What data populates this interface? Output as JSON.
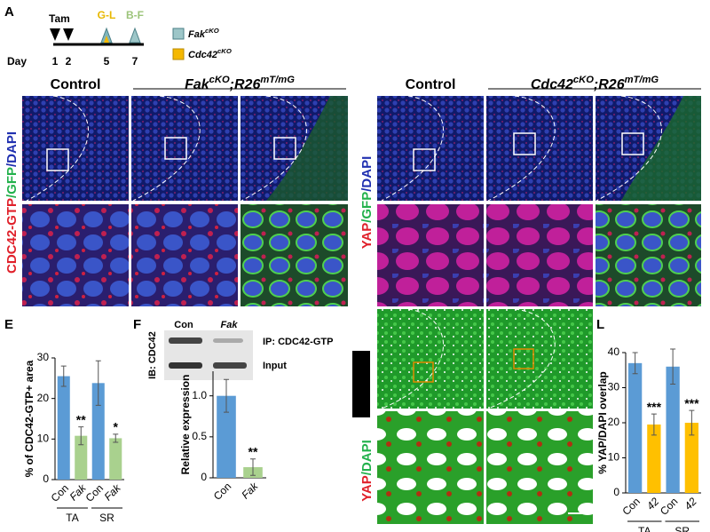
{
  "panel_labels": {
    "a": "A",
    "e": "E",
    "f": "F",
    "l": "L"
  },
  "timeline": {
    "drug": "Tam",
    "day_label": "Day",
    "days": [
      "1",
      "2",
      "5",
      "7"
    ],
    "markers": [
      "G-L",
      "B-F"
    ],
    "legend": [
      [
        "Fak",
        "cKO"
      ],
      [
        "Cdc42",
        "cKO"
      ]
    ]
  },
  "fak_images": {
    "control": "Control",
    "mutant": [
      "Fak",
      "cKO",
      ";R26",
      "mT/mG"
    ],
    "stain": [
      "CDC42-GTP",
      "/GFP",
      "/DAPI"
    ]
  },
  "cdc42_images": {
    "control": "Control",
    "mutant": [
      "Cdc42",
      "cKO",
      ";R26",
      "mT/mG"
    ],
    "stain": [
      "YAP",
      "/GFP",
      "/DAPI"
    ],
    "stain2": [
      "YAP",
      "/DAPI"
    ]
  },
  "blot": {
    "lanes": [
      "Con",
      "Fak"
    ],
    "antibody": "IB: CDC42",
    "rows": [
      "IP: CDC42-GTP",
      "Input"
    ]
  },
  "chart_data": [
    {
      "type": "bar",
      "ylabel": "% of CDC42-GTP+ area",
      "categories": [
        "Con",
        "Fak",
        "Con",
        "Fak"
      ],
      "groups": [
        "TA",
        "SR"
      ],
      "values": [
        25.5,
        10.8,
        23.8,
        10.2
      ],
      "errors": [
        2.5,
        2.2,
        5.5,
        1.0
      ],
      "colors": [
        "#5b9bd5",
        "#a9d18e",
        "#5b9bd5",
        "#a9d18e"
      ],
      "annotations": [
        null,
        "**",
        null,
        "*"
      ],
      "ylim": [
        0,
        30
      ],
      "yticks": [
        0,
        10,
        20,
        30
      ]
    },
    {
      "type": "bar",
      "ylabel": "Relative expression",
      "categories": [
        "Con",
        "Fak"
      ],
      "values": [
        1.0,
        0.13
      ],
      "errors": [
        0.2,
        0.1
      ],
      "colors": [
        "#5b9bd5",
        "#a9d18e"
      ],
      "annotations": [
        null,
        "**"
      ],
      "ylim": [
        0,
        1.3
      ],
      "yticks": [
        0,
        0.5,
        {
          "value": 1,
          "label": "1.0"
        }
      ]
    },
    {
      "type": "bar",
      "ylabel": "% YAP/DAPI overlap",
      "categories": [
        "Con",
        "42",
        "Con",
        "42"
      ],
      "groups": [
        "TA",
        "SR"
      ],
      "values": [
        37,
        19.5,
        36,
        20
      ],
      "errors": [
        3,
        3,
        5,
        3.5
      ],
      "colors": [
        "#5b9bd5",
        "#ffc000",
        "#5b9bd5",
        "#ffc000"
      ],
      "annotations": [
        null,
        "***",
        null,
        "***"
      ],
      "ylim": [
        0,
        40
      ],
      "yticks": [
        0,
        10,
        20,
        30,
        40
      ]
    }
  ]
}
